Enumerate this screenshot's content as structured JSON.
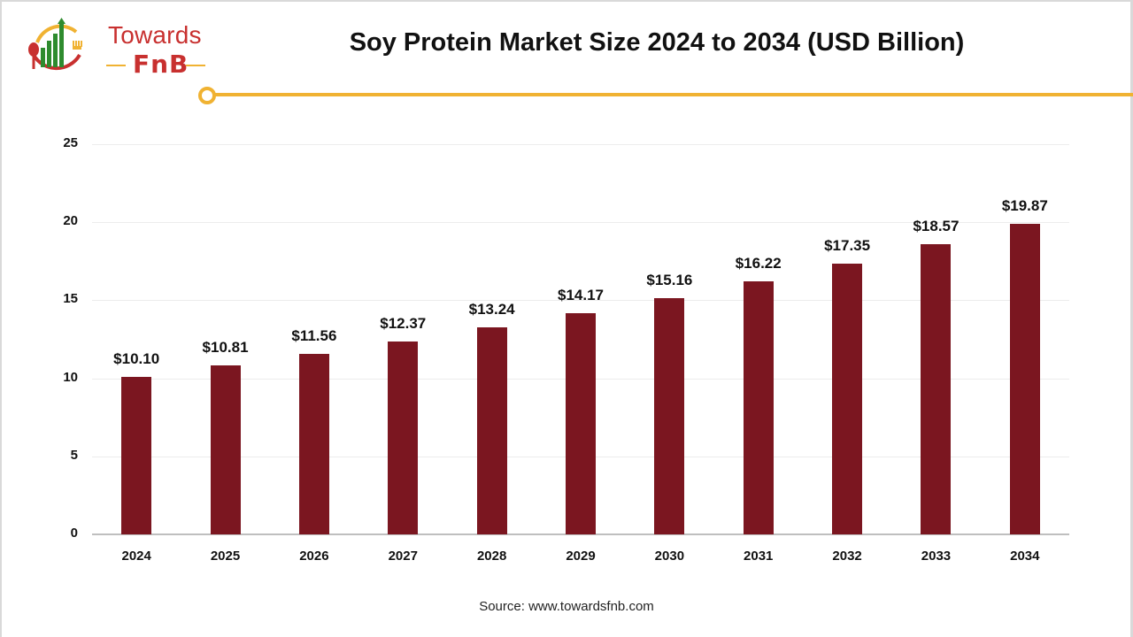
{
  "logo": {
    "line1": "Towards",
    "line2": "FnB",
    "icon": "chart-plate-fork-spoon-icon",
    "colors": {
      "red": "#c8302f",
      "green": "#2e8b2e",
      "yellow": "#f0b232"
    }
  },
  "header": {
    "title": "Soy Protein Market Size 2024 to 2034 (USD Billion)"
  },
  "colors": {
    "bar": "#7b1620",
    "accent": "#f0b232",
    "gridline": "#ececec",
    "axis": "#bfbfbf"
  },
  "chart_data": {
    "type": "bar",
    "title": "Soy Protein Market Size 2024 to 2034 (USD Billion)",
    "xlabel": "",
    "ylabel": "",
    "categories": [
      "2024",
      "2025",
      "2026",
      "2027",
      "2028",
      "2029",
      "2030",
      "2031",
      "2032",
      "2033",
      "2034"
    ],
    "values": [
      10.1,
      10.81,
      11.56,
      12.37,
      13.24,
      14.17,
      15.16,
      16.22,
      17.35,
      18.57,
      19.87
    ],
    "value_labels": [
      "$10.10",
      "$10.81",
      "$11.56",
      "$12.37",
      "$13.24",
      "$14.17",
      "$15.16",
      "$16.22",
      "$17.35",
      "$18.57",
      "$19.87"
    ],
    "ylim": [
      0,
      25
    ],
    "yticks": [
      0,
      5,
      10,
      15,
      20,
      25
    ],
    "grid": true,
    "legend": null,
    "series_color": "#7b1620"
  },
  "footer": {
    "source": "Source: www.towardsfnb.com"
  }
}
